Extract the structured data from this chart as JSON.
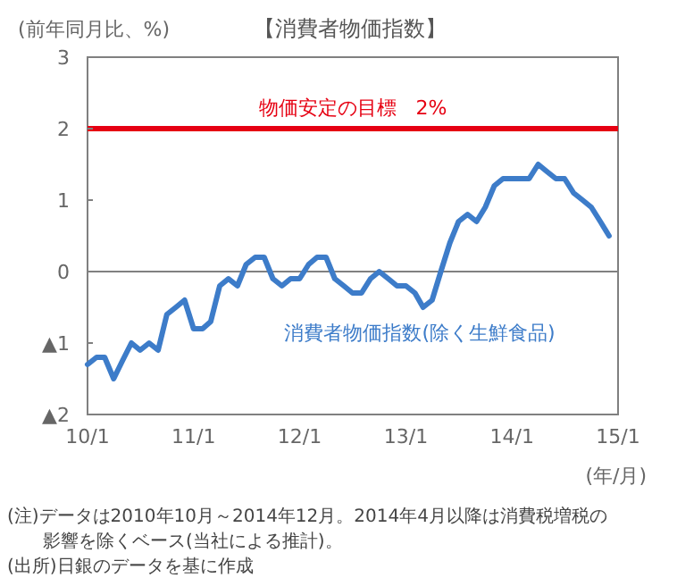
{
  "chart_data": {
    "type": "line",
    "title": "【消費者物価指数】",
    "ylabel": "(前年同月比、%)",
    "xlabel": "(年/月)",
    "x": [
      "2010-01",
      "2010-02",
      "2010-03",
      "2010-04",
      "2010-05",
      "2010-06",
      "2010-07",
      "2010-08",
      "2010-09",
      "2010-10",
      "2010-11",
      "2010-12",
      "2011-01",
      "2011-02",
      "2011-03",
      "2011-04",
      "2011-05",
      "2011-06",
      "2011-07",
      "2011-08",
      "2011-09",
      "2011-10",
      "2011-11",
      "2011-12",
      "2012-01",
      "2012-02",
      "2012-03",
      "2012-04",
      "2012-05",
      "2012-06",
      "2012-07",
      "2012-08",
      "2012-09",
      "2012-10",
      "2012-11",
      "2012-12",
      "2013-01",
      "2013-02",
      "2013-03",
      "2013-04",
      "2013-05",
      "2013-06",
      "2013-07",
      "2013-08",
      "2013-09",
      "2013-10",
      "2013-11",
      "2013-12",
      "2014-01",
      "2014-02",
      "2014-03",
      "2014-04",
      "2014-05",
      "2014-06",
      "2014-07",
      "2014-08",
      "2014-09",
      "2014-10",
      "2014-11",
      "2014-12"
    ],
    "series": [
      {
        "name": "消費者物価指数(除く生鮮食品)",
        "color": "#3d7cc9",
        "values": [
          -1.3,
          -1.2,
          -1.2,
          -1.5,
          -1.25,
          -1.0,
          -1.1,
          -1.0,
          -1.1,
          -0.6,
          -0.5,
          -0.4,
          -0.8,
          -0.8,
          -0.7,
          -0.2,
          -0.1,
          -0.2,
          0.1,
          0.2,
          0.2,
          -0.1,
          -0.2,
          -0.1,
          -0.1,
          0.1,
          0.2,
          0.2,
          -0.1,
          -0.2,
          -0.3,
          -0.3,
          -0.1,
          0.0,
          -0.1,
          -0.2,
          -0.2,
          -0.3,
          -0.5,
          -0.4,
          0.0,
          0.4,
          0.7,
          0.8,
          0.7,
          0.9,
          1.2,
          1.3,
          1.3,
          1.3,
          1.3,
          1.5,
          1.4,
          1.3,
          1.3,
          1.1,
          1.0,
          0.9,
          0.7,
          0.5
        ]
      }
    ],
    "xlim": [
      "2010-01",
      "2015-01"
    ],
    "xticks": [
      {
        "value": "2010-01",
        "label": "10/1"
      },
      {
        "value": "2011-01",
        "label": "11/1"
      },
      {
        "value": "2012-01",
        "label": "12/1"
      },
      {
        "value": "2013-01",
        "label": "13/1"
      },
      {
        "value": "2014-01",
        "label": "14/1"
      },
      {
        "value": "2015-01",
        "label": "15/1"
      }
    ],
    "ylim": [
      -2,
      3
    ],
    "yticks": [
      {
        "value": -2,
        "label": "▲2"
      },
      {
        "value": -1,
        "label": "▲1"
      },
      0,
      1,
      2,
      3
    ],
    "ref_lines": [
      {
        "axis": "y",
        "value": 2,
        "label": "物価安定の目標　2%",
        "color": "#e60012"
      },
      {
        "axis": "y",
        "value": 0,
        "color": "#808080"
      }
    ],
    "grid": false,
    "line_style": "solid",
    "annotations": [
      "(注)データは2010年10月～2014年12月。2014年4月以降は消費税増税の",
      "　　影響を除くベース(当社による推計)。",
      "(出所)日銀のデータを基に作成"
    ]
  }
}
